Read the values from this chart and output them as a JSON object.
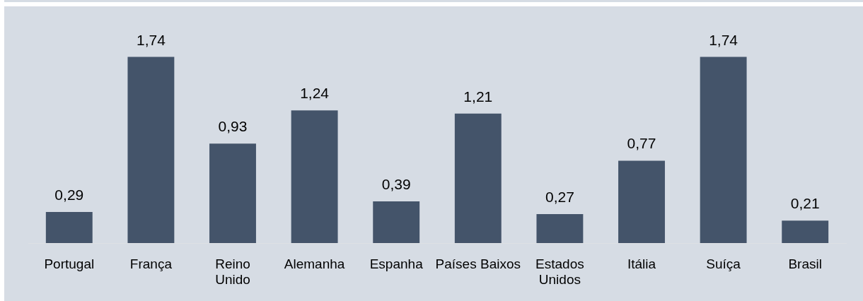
{
  "chart_data": {
    "type": "bar",
    "categories": [
      "Portugal",
      "França",
      "Reino\nUnido",
      "Alemanha",
      "Espanha",
      "Países Baixos",
      "Estados\nUnidos",
      "Itália",
      "Suíça",
      "Brasil"
    ],
    "values": [
      0.29,
      1.74,
      0.93,
      1.24,
      0.39,
      1.21,
      0.27,
      0.77,
      1.74,
      0.21
    ],
    "value_labels": [
      "0,29",
      "1,74",
      "0,93",
      "1,24",
      "0,39",
      "1,21",
      "0,27",
      "0,77",
      "1,74",
      "0,21"
    ],
    "color": "#44546a",
    "tick_labels": "x"
  }
}
